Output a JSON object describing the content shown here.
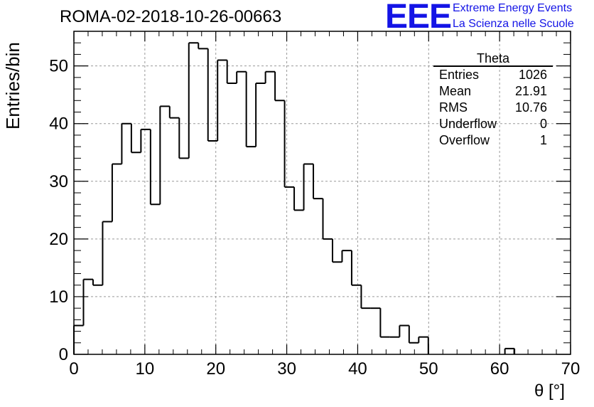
{
  "header": {
    "run_title": "ROMA-02-2018-10-26-00663",
    "logo_text": "EEE",
    "logo_line1": "Extreme Energy Events",
    "logo_line2": "La Scienza nelle Scuole",
    "logo_color": "#1414e6"
  },
  "stats_box": {
    "title": "Theta",
    "rows": [
      {
        "label": "Entries",
        "value": "1026"
      },
      {
        "label": "Mean",
        "value": "21.91"
      },
      {
        "label": "RMS",
        "value": "10.76"
      },
      {
        "label": "Underflow",
        "value": "0"
      },
      {
        "label": "Overflow",
        "value": "1"
      }
    ]
  },
  "chart_data": {
    "type": "histogram",
    "title": "ROMA-02-2018-10-26-00663",
    "xlabel": "θ [°]",
    "ylabel": "Entries/bin",
    "xlim": [
      0,
      70
    ],
    "ylim": [
      0,
      56
    ],
    "bin_width": 1.35,
    "bin_start": 0,
    "x_ticks": [
      0,
      10,
      20,
      30,
      40,
      50,
      60,
      70
    ],
    "y_ticks": [
      0,
      10,
      20,
      30,
      40,
      50
    ],
    "grid": true,
    "line_color": "#000000",
    "values": [
      5,
      13,
      12,
      23,
      33,
      40,
      35,
      39,
      26,
      43,
      41,
      34,
      54,
      53,
      37,
      51,
      47,
      49,
      36,
      47,
      49,
      44,
      29,
      25,
      33,
      27,
      20,
      16,
      18,
      12,
      8,
      8,
      3,
      3,
      5,
      2,
      3,
      0,
      0,
      0,
      0,
      0,
      0,
      0,
      0,
      1
    ]
  }
}
